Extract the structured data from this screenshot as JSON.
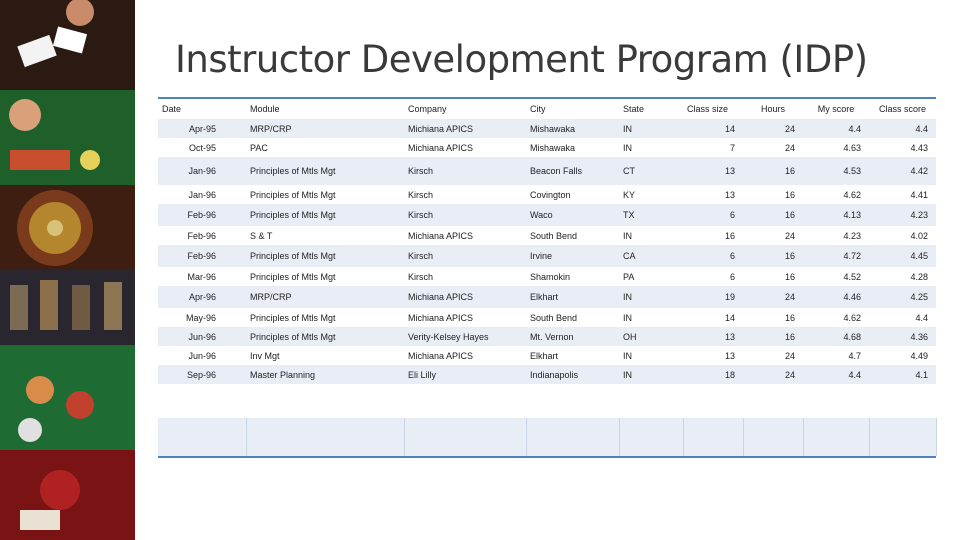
{
  "title": "Instructor Development Program (IDP)",
  "table": {
    "headers": [
      "Date",
      "Module",
      "Company",
      "City",
      "State",
      "Class size",
      "Hours",
      "My score",
      "Class score"
    ],
    "rows": [
      [
        "Apr-95",
        "MRP/CRP",
        "Michiana APICS",
        "Mishawaka",
        "IN",
        "14",
        "24",
        "4.4",
        "4.4"
      ],
      [
        "Oct-95",
        "PAC",
        "Michiana APICS",
        "Mishawaka",
        "IN",
        "7",
        "24",
        "4.63",
        "4.43"
      ],
      [
        "Jan-96",
        "Principles of Mtls Mgt",
        "Kirsch",
        "Beacon Falls",
        "CT",
        "13",
        "16",
        "4.53",
        "4.42"
      ],
      [
        "Jan-96",
        "Principles of Mtls Mgt",
        "Kirsch",
        "Covington",
        "KY",
        "13",
        "16",
        "4.62",
        "4.41"
      ],
      [
        "Feb-96",
        "Principles of Mtls Mgt",
        "Kirsch",
        "Waco",
        "TX",
        "6",
        "16",
        "4.13",
        "4.23"
      ],
      [
        "Feb-96",
        "S & T",
        "Michiana APICS",
        "South Bend",
        "IN",
        "16",
        "24",
        "4.23",
        "4.02"
      ],
      [
        "Feb-96",
        "Principles of Mtls Mgt",
        "Kirsch",
        "Irvine",
        "CA",
        "6",
        "16",
        "4.72",
        "4.45"
      ],
      [
        "Mar-96",
        "Principles of Mtls Mgt",
        "Kirsch",
        "Shamokin",
        "PA",
        "6",
        "16",
        "4.52",
        "4.28"
      ],
      [
        "Apr-96",
        "MRP/CRP",
        "Michiana APICS",
        "Elkhart",
        "IN",
        "19",
        "24",
        "4.46",
        "4.25"
      ],
      [
        "May-96",
        "Principles of Mtls Mgt",
        "Michiana APICS",
        "South Bend",
        "IN",
        "14",
        "16",
        "4.62",
        "4.4"
      ],
      [
        "Jun-96",
        "Principles of Mtls Mgt",
        "Verity-Kelsey Hayes",
        "Mt. Vernon",
        "OH",
        "13",
        "16",
        "4.68",
        "4.36"
      ],
      [
        "Jun-96",
        "Inv Mgt",
        "Michiana APICS",
        "Elkhart",
        "IN",
        "13",
        "24",
        "4.7",
        "4.49"
      ],
      [
        "Sep-96",
        "Master Planning",
        "Eli Lilly",
        "Indianapolis",
        "IN",
        "18",
        "24",
        "4.4",
        "4.1"
      ]
    ]
  }
}
